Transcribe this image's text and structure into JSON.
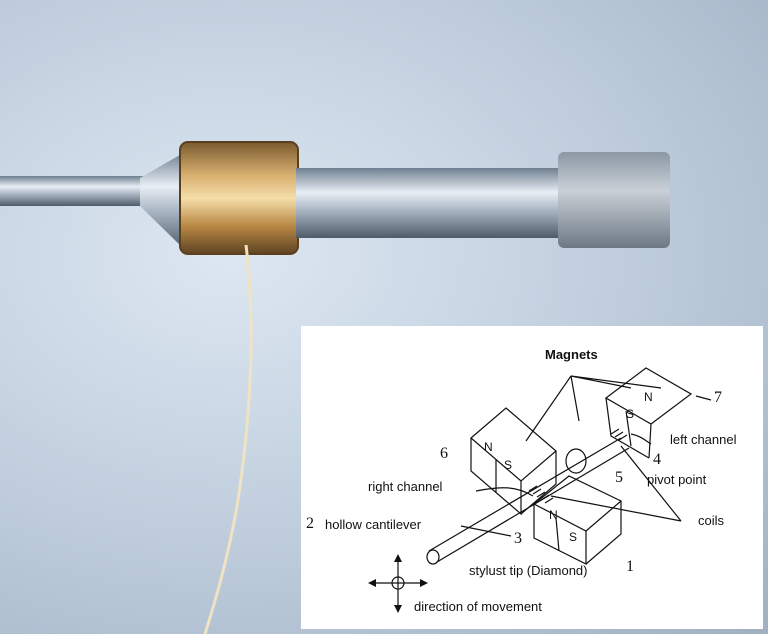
{
  "diagram": {
    "labels": {
      "magnets": "Magnets",
      "left_channel": "left channel",
      "right_channel": "right channel",
      "pivot_point": "pivot point",
      "coils": "coils",
      "hollow_cantilever": "hollow cantilever",
      "stylus_tip": "stylust tip (Diamond)",
      "direction_of_movement": "direction of movement"
    },
    "numbers": {
      "n1": "1",
      "n2": "2",
      "n3": "3",
      "n4": "4",
      "n5": "5",
      "n6": "6",
      "n7": "7"
    },
    "poles": {
      "n": "N",
      "s": "S"
    }
  }
}
